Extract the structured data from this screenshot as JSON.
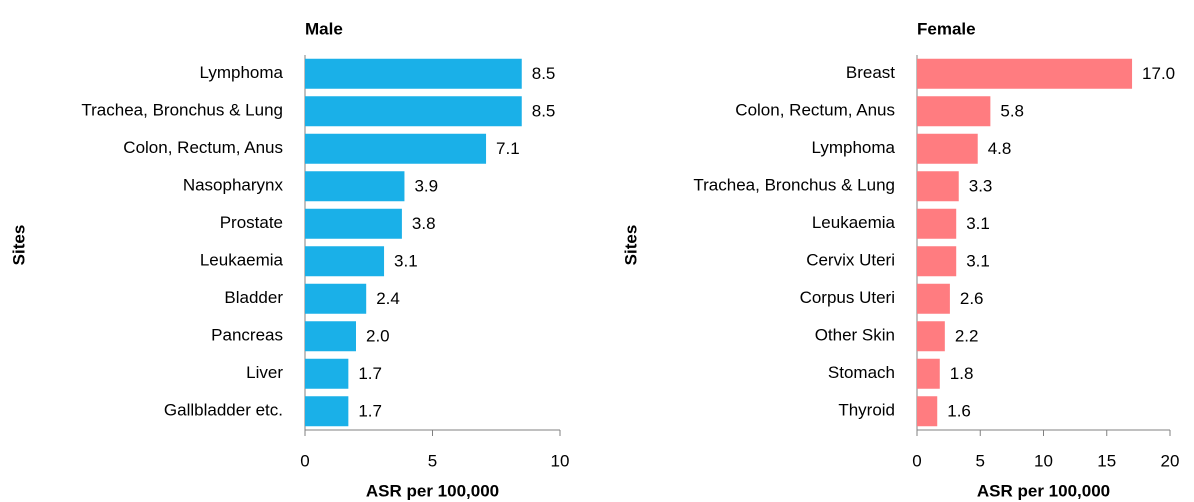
{
  "chart_data": [
    {
      "type": "bar",
      "orientation": "horizontal",
      "title": "Male",
      "y_label": "Sites",
      "x_label": "ASR per 100,000",
      "categories": [
        "Lymphoma",
        "Trachea, Bronchus & Lung",
        "Colon, Rectum, Anus",
        "Nasopharynx",
        "Prostate",
        "Leukaemia",
        "Bladder",
        "Pancreas",
        "Liver",
        "Gallbladder etc."
      ],
      "values": [
        8.5,
        8.5,
        7.1,
        3.9,
        3.8,
        3.1,
        2.4,
        2.0,
        1.7,
        1.7
      ],
      "value_labels": [
        "8.5",
        "8.5",
        "7.1",
        "3.9",
        "3.8",
        "3.1",
        "2.4",
        "2.0",
        "1.7",
        "1.7"
      ],
      "color": "#1ab0e8",
      "xlim": [
        0,
        10
      ],
      "xticks": [
        0,
        5,
        10
      ]
    },
    {
      "type": "bar",
      "orientation": "horizontal",
      "title": "Female",
      "y_label": "Sites",
      "x_label": "ASR per 100,000",
      "categories": [
        "Breast",
        "Colon, Rectum, Anus",
        "Lymphoma",
        "Trachea, Bronchus & Lung",
        "Leukaemia",
        "Cervix Uteri",
        "Corpus Uteri",
        "Other Skin",
        "Stomach",
        "Thyroid"
      ],
      "values": [
        17.0,
        5.8,
        4.8,
        3.3,
        3.1,
        3.1,
        2.6,
        2.2,
        1.8,
        1.6
      ],
      "value_labels": [
        "17.0",
        "5.8",
        "4.8",
        "3.3",
        "3.1",
        "3.1",
        "2.6",
        "2.2",
        "1.8",
        "1.6"
      ],
      "color": "#ff7c80",
      "xlim": [
        0,
        20
      ],
      "xticks": [
        0,
        5,
        10,
        15,
        20
      ]
    }
  ]
}
